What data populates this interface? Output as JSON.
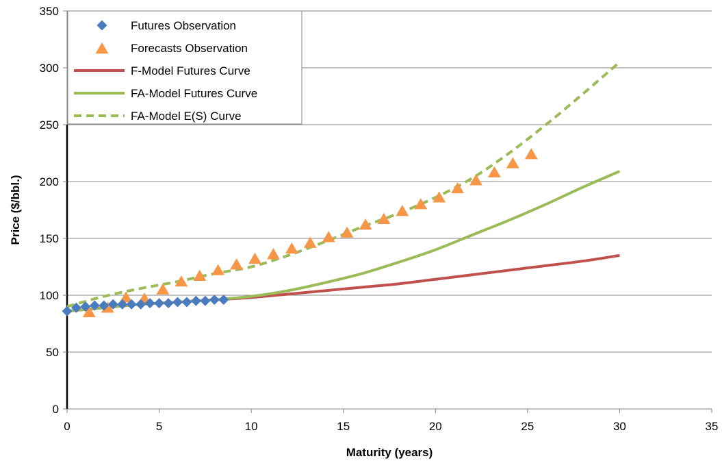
{
  "chart_data": {
    "type": "line",
    "title": "",
    "xlabel": "Maturity (years)",
    "ylabel": "Price ($/bbl.)",
    "xlim": [
      0,
      35
    ],
    "ylim": [
      0,
      350
    ],
    "xticks": [
      0,
      5,
      10,
      15,
      20,
      25,
      30,
      35
    ],
    "yticks": [
      0,
      50,
      100,
      150,
      200,
      250,
      300,
      350
    ],
    "grid": "horizontal",
    "legend_position": "top-left",
    "colors": {
      "futures_obs": "#4a7bbf",
      "forecasts_obs": "#f79646",
      "f_model": "#c0504d",
      "fa_model": "#9bbb59",
      "fa_es": "#9bbb59"
    },
    "series": [
      {
        "name": "Futures Observation",
        "kind": "scatter",
        "marker": "diamond",
        "x": [
          0.0,
          0.5,
          1.0,
          1.5,
          2.0,
          2.5,
          3.0,
          3.5,
          4.0,
          4.5,
          5.0,
          5.5,
          6.0,
          6.5,
          7.0,
          7.5,
          8.0,
          8.5
        ],
        "y": [
          86,
          89,
          90,
          91,
          91,
          92,
          92,
          92,
          92,
          93,
          93,
          93,
          94,
          94,
          95,
          95,
          96,
          96
        ]
      },
      {
        "name": "Forecasts Observation",
        "kind": "scatter",
        "marker": "triangle",
        "x": [
          1.2,
          2.2,
          3.2,
          4.2,
          5.2,
          6.2,
          7.2,
          8.2,
          9.2,
          10.2,
          11.2,
          12.2,
          13.2,
          14.2,
          15.2,
          16.2,
          17.2,
          18.2,
          19.2,
          20.2,
          21.2,
          22.2,
          23.2,
          24.2,
          25.2
        ],
        "y": [
          85,
          89,
          98,
          97,
          105,
          112,
          117,
          122,
          127,
          132,
          136,
          141,
          146,
          151,
          155,
          162,
          167,
          174,
          180,
          186,
          194,
          201,
          208,
          216,
          224
        ]
      },
      {
        "name": "F-Model Futures Curve",
        "kind": "line",
        "style": "solid",
        "x": [
          0,
          2,
          4,
          6,
          8,
          10,
          12,
          14,
          16,
          18,
          20,
          22,
          24,
          26,
          28,
          30
        ],
        "y": [
          86,
          89,
          92,
          94,
          96,
          98,
          101,
          104,
          107,
          110,
          114,
          118,
          122,
          126,
          130,
          135
        ]
      },
      {
        "name": "FA-Model Futures Curve",
        "kind": "line",
        "style": "solid",
        "x": [
          0,
          2,
          4,
          6,
          8,
          10,
          12,
          14,
          16,
          18,
          20,
          22,
          24,
          26,
          28,
          30
        ],
        "y": [
          86,
          89,
          92,
          94,
          96,
          99,
          104,
          111,
          119,
          129,
          140,
          153,
          166,
          180,
          195,
          209
        ]
      },
      {
        "name": "FA-Model E(S) Curve",
        "kind": "line",
        "style": "dashed",
        "x": [
          0,
          2,
          4,
          6,
          8,
          10,
          12,
          14,
          16,
          18,
          20,
          22,
          24,
          26,
          28,
          30
        ],
        "y": [
          90,
          99,
          106,
          112,
          119,
          125,
          135,
          147,
          160,
          172,
          186,
          203,
          225,
          250,
          277,
          305
        ]
      }
    ]
  }
}
